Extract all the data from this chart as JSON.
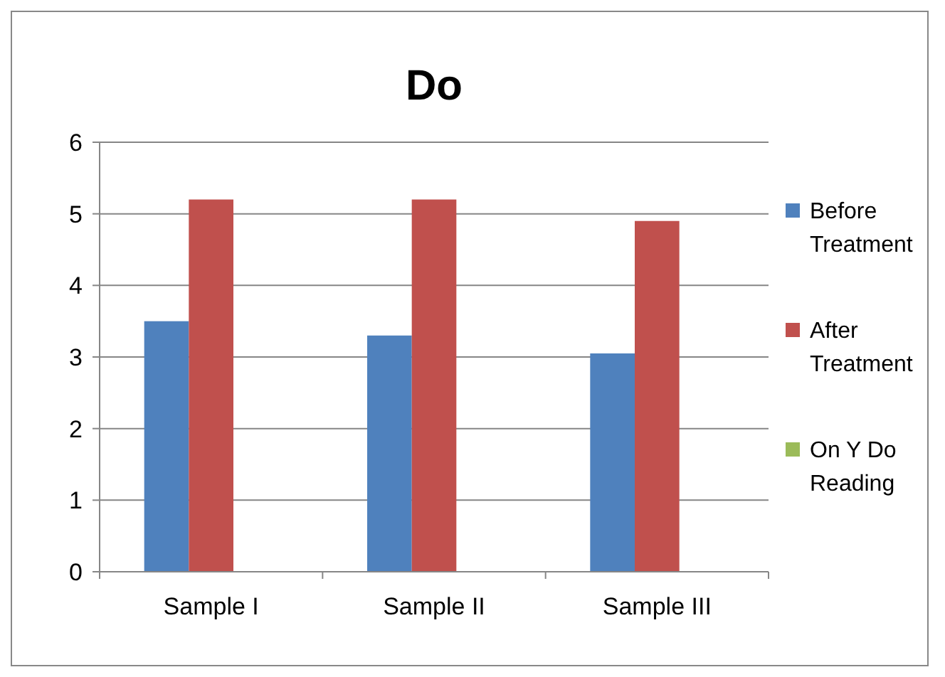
{
  "chart_data": {
    "type": "bar",
    "title": "Do",
    "categories": [
      "Sample I",
      "Sample II",
      "Sample III"
    ],
    "series": [
      {
        "name": "Before Treatment",
        "color": "#4f81bd",
        "values": [
          3.5,
          3.3,
          3.05
        ]
      },
      {
        "name": "After Treatment",
        "color": "#c0504d",
        "values": [
          5.2,
          5.2,
          4.9
        ]
      },
      {
        "name": "On Y Do Reading",
        "color": "#9bbb59",
        "values": [
          null,
          null,
          null
        ]
      }
    ],
    "ylim": [
      0,
      6
    ],
    "yticks": [
      0,
      1,
      2,
      3,
      4,
      5,
      6
    ],
    "grid": "y",
    "legend": "right"
  }
}
